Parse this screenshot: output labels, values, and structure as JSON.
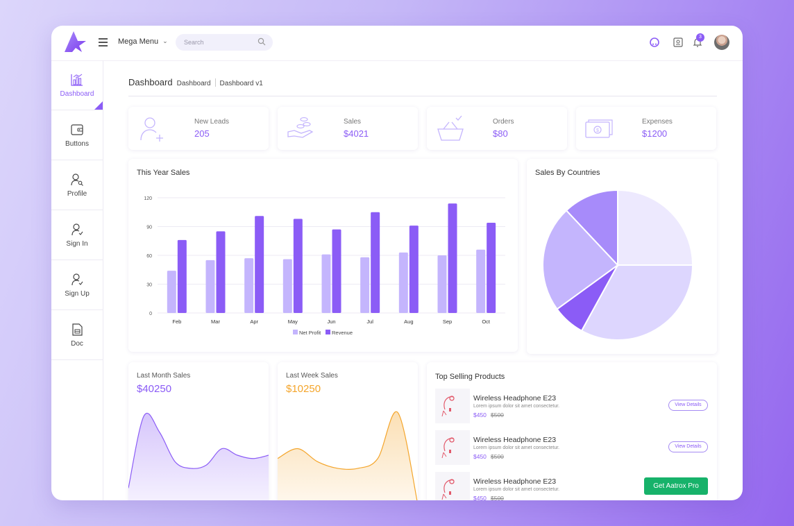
{
  "header": {
    "menu_label": "Mega Menu",
    "search_placeholder": "Search",
    "notification_count": "3",
    "accent_color": "#8b5cf6"
  },
  "sidebar": {
    "items": [
      {
        "label": "Dashboard",
        "icon": "bar-chart-icon",
        "active": true
      },
      {
        "label": "Buttons",
        "icon": "wallet-icon"
      },
      {
        "label": "Profile",
        "icon": "user-search-icon"
      },
      {
        "label": "Sign In",
        "icon": "user-check-icon"
      },
      {
        "label": "Sign Up",
        "icon": "user-check-icon"
      },
      {
        "label": "Doc",
        "icon": "document-icon"
      }
    ]
  },
  "breadcrumb": {
    "title": "Dashboard",
    "items": [
      "Dashboard",
      "Dashboard v1"
    ]
  },
  "stats": [
    {
      "label": "New Leads",
      "value": "205",
      "icon": "user-add-icon"
    },
    {
      "label": "Sales",
      "value": "$4021",
      "icon": "hand-coins-icon"
    },
    {
      "label": "Orders",
      "value": "$80",
      "icon": "basket-icon"
    },
    {
      "label": "Expenses",
      "value": "$1200",
      "icon": "banknotes-icon"
    }
  ],
  "this_year_sales": {
    "title": "This Year Sales"
  },
  "sales_by_countries": {
    "title": "Sales By Countries"
  },
  "last_month_sales": {
    "title": "Last Month Sales",
    "value": "$40250",
    "color": "#8b5cf6"
  },
  "last_week_sales": {
    "title": "Last Week Sales",
    "value": "$10250",
    "color": "#f4a52b"
  },
  "top_selling": {
    "title": "Top Selling Products",
    "products": [
      {
        "name": "Wireless Headphone E23",
        "desc": "Lorem ipsum dolor sit amet consectetur.",
        "price": "$450",
        "old_price": "$500",
        "button": "View Details"
      },
      {
        "name": "Wireless Headphone E23",
        "desc": "Lorem ipsum dolor sit amet consectetur.",
        "price": "$450",
        "old_price": "$500",
        "button": "View Details"
      },
      {
        "name": "Wireless Headphone E23",
        "desc": "Lorem ipsum dolor sit amet consectetur.",
        "price": "$450",
        "old_price": "$500"
      }
    ],
    "pro_button": "Get Aatrox Pro"
  },
  "chart_data": [
    {
      "type": "bar",
      "title": "This Year Sales",
      "categories": [
        "Feb",
        "Mar",
        "Apr",
        "May",
        "Jun",
        "Jul",
        "Aug",
        "Sep",
        "Oct"
      ],
      "series": [
        {
          "name": "Net Profit",
          "color": "#c4b5fd",
          "values": [
            44,
            55,
            57,
            56,
            61,
            58,
            63,
            60,
            66
          ]
        },
        {
          "name": "Revenue",
          "color": "#8b5cf6",
          "values": [
            76,
            85,
            101,
            98,
            87,
            105,
            91,
            114,
            94
          ]
        }
      ],
      "yticks": [
        "0",
        "30",
        "60",
        "90",
        "120"
      ],
      "ylim": [
        0,
        120
      ],
      "grid": true,
      "legend": "bottom"
    },
    {
      "type": "pie",
      "title": "Sales By Countries",
      "slices": [
        {
          "value": 25,
          "color": "#ede9fe"
        },
        {
          "value": 33,
          "color": "#ddd6fe"
        },
        {
          "value": 7,
          "color": "#8b5cf6"
        },
        {
          "value": 23,
          "color": "#c4b5fd"
        },
        {
          "value": 12,
          "color": "#a78bfa"
        }
      ]
    },
    {
      "type": "area",
      "title": "Last Month Sales",
      "values": [
        5,
        27,
        22,
        13,
        11,
        12,
        17,
        15,
        14,
        15
      ],
      "ylim": [
        0,
        30
      ],
      "color": "#8b5cf6"
    },
    {
      "type": "area",
      "title": "Last Week Sales",
      "values": [
        14,
        17,
        13,
        11,
        11,
        14,
        28,
        0
      ],
      "ylim": [
        0,
        30
      ],
      "color": "#f4a52b"
    }
  ]
}
